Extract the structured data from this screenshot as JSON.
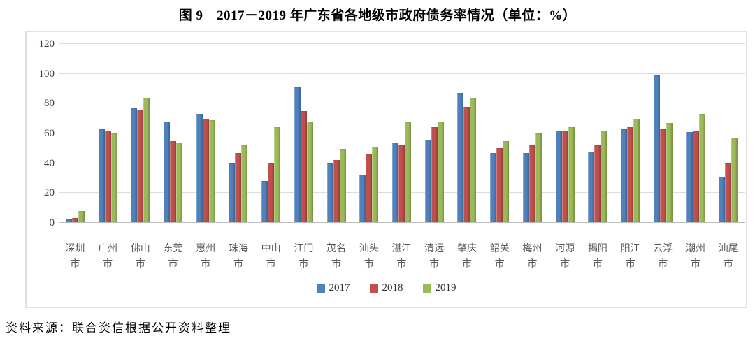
{
  "page": {
    "title": "图 9　2017－2019 年广东省各地级市政府债务率情况（单位：%）",
    "source": "资料来源：联合资信根据公开资料整理"
  },
  "chart_data": {
    "type": "bar",
    "title": "图 9　2017－2019 年广东省各地级市政府债务率情况",
    "unit": "%",
    "categories": [
      "深圳市",
      "广州市",
      "佛山市",
      "东莞市",
      "惠州市",
      "珠海市",
      "中山市",
      "江门市",
      "茂名市",
      "汕头市",
      "湛江市",
      "清远市",
      "肇庆市",
      "韶关市",
      "梅州市",
      "河源市",
      "揭阳市",
      "阳江市",
      "云浮市",
      "潮州市",
      "汕尾市"
    ],
    "series": [
      {
        "name": "2017",
        "color": "#4F81BD",
        "values": [
          2.5,
          63,
          77,
          68,
          73,
          40,
          28,
          91,
          40,
          32,
          54,
          56,
          87,
          47,
          47,
          62,
          48,
          63,
          99,
          61,
          31
        ]
      },
      {
        "name": "2018",
        "color": "#C0504D",
        "values": [
          3.5,
          62,
          76,
          55,
          70,
          47,
          40,
          75,
          42,
          46,
          52,
          64,
          78,
          50,
          52,
          62,
          52,
          64,
          63,
          62,
          40
        ]
      },
      {
        "name": "2019",
        "color": "#9BBB59",
        "values": [
          8,
          60,
          84,
          54,
          69,
          52,
          64,
          68,
          49,
          51,
          68,
          68,
          84,
          55,
          60,
          64,
          62,
          70,
          67,
          73,
          57
        ]
      }
    ],
    "ylim": [
      0,
      120
    ],
    "yticks": [
      0,
      20,
      40,
      60,
      80,
      100,
      120
    ],
    "grid": true,
    "legend_position": "bottom"
  }
}
